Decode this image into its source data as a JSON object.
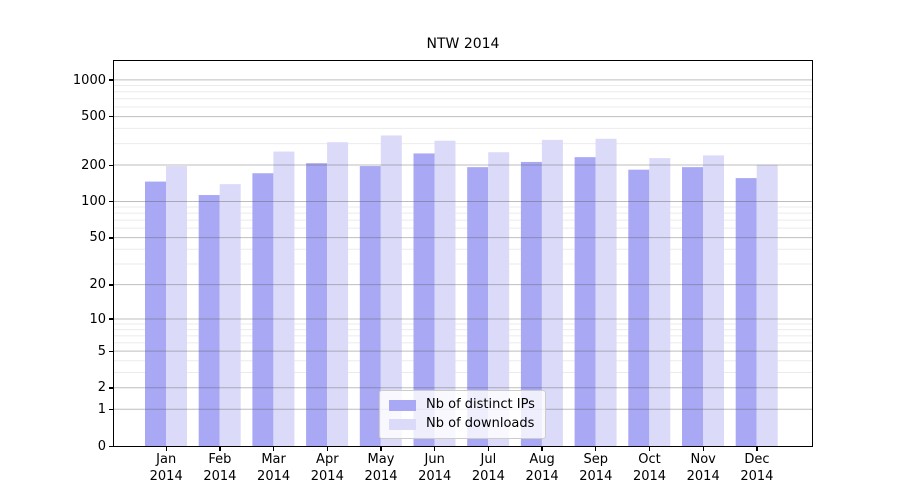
{
  "window": {
    "background": "#ffffff"
  },
  "chart_data": {
    "type": "bar",
    "title": "NTW 2014",
    "categories": [
      "Jan",
      "Feb",
      "Mar",
      "Apr",
      "May",
      "Jun",
      "Jul",
      "Aug",
      "Sep",
      "Oct",
      "Nov",
      "Dec"
    ],
    "x_tick_year": "2014",
    "series": [
      {
        "name": "Nb of distinct IPs",
        "color": "#a8a8f4",
        "values": [
          146,
          113,
          171,
          207,
          196,
          249,
          192,
          212,
          232,
          183,
          192,
          156
        ]
      },
      {
        "name": "Nb of downloads",
        "color": "#dbdbf9",
        "values": [
          196,
          139,
          258,
          308,
          350,
          317,
          255,
          322,
          329,
          228,
          240,
          201
        ]
      }
    ],
    "xlabel": "",
    "ylabel": "",
    "yscale": "log1p",
    "ylim": [
      0,
      1430
    ],
    "yticks": [
      1000,
      500,
      200,
      100,
      50,
      20,
      10,
      5,
      2,
      1,
      0
    ],
    "minor_yticks": [
      3,
      4,
      6,
      7,
      8,
      9,
      30,
      40,
      60,
      70,
      80,
      90,
      300,
      400,
      600,
      700,
      800,
      900
    ],
    "grid": true,
    "grid_on_top_of_bars": true,
    "legend_position": "inside-bottom-center",
    "colors": {
      "grid_major": "rgba(90,90,90,0.40)",
      "grid_minor": "rgba(0,0,0,0.08)",
      "spine": "#000000",
      "legend_border": "#cccccc",
      "legend_background": "rgba(255,255,255,0.8)",
      "text": "#000000"
    }
  }
}
